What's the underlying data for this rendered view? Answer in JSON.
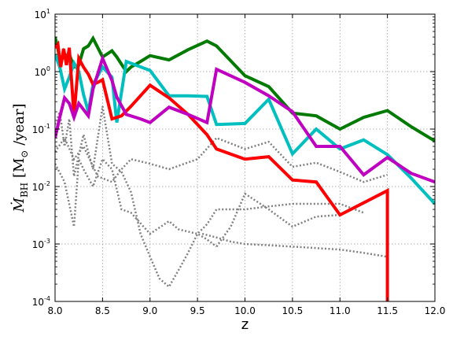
{
  "chart_data": {
    "type": "line",
    "title": "",
    "xlabel": "z",
    "ylabel": "Ṁ_BH  [M⊙ /year]",
    "ylabel_main": "Ṁ",
    "ylabel_sub": "BH",
    "ylabel_units_open": "  [M",
    "ylabel_units_sym": "⊙",
    "ylabel_units_close": " /year]",
    "xlim": [
      8.0,
      12.0
    ],
    "ylim": [
      0.0001,
      10
    ],
    "yscale": "log",
    "grid": true,
    "legend": "none",
    "x_ticks": [
      "8.0",
      "8.5",
      "9.0",
      "9.5",
      "10.0",
      "10.5",
      "11.0",
      "11.5",
      "12.0"
    ],
    "y_ticks": [
      {
        "base": "10",
        "exp": "-4"
      },
      {
        "base": "10",
        "exp": "-3"
      },
      {
        "base": "10",
        "exp": "-2"
      },
      {
        "base": "10",
        "exp": "-1"
      },
      {
        "base": "10",
        "exp": "0"
      },
      {
        "base": "10",
        "exp": "1"
      }
    ],
    "series": [
      {
        "color": "#808080",
        "style": "dotted",
        "x": [
          8.0,
          8.05,
          8.1,
          8.15,
          8.2,
          8.3,
          8.4,
          8.5,
          8.6,
          8.7,
          8.8,
          8.9,
          9.0,
          9.1,
          9.2,
          9.3,
          9.4,
          9.5,
          9.6,
          9.7
        ],
        "y": [
          0.12,
          0.2,
          0.05,
          0.15,
          0.015,
          0.08,
          0.02,
          0.25,
          0.025,
          0.018,
          0.008,
          0.0015,
          0.0006,
          0.00025,
          0.00018,
          0.00035,
          0.0007,
          0.0015,
          0.0012,
          0.0009
        ]
      },
      {
        "color": "#808080",
        "style": "dotted",
        "x": [
          8.0,
          8.1,
          8.2,
          8.25,
          8.3,
          8.4,
          8.5,
          8.6,
          8.7,
          8.8,
          9.0,
          9.2,
          9.3,
          9.5,
          9.6,
          9.7,
          10.0,
          10.25,
          10.5,
          10.75,
          11.0,
          11.25
        ],
        "y": [
          0.025,
          0.012,
          0.002,
          0.03,
          0.02,
          0.01,
          0.03,
          0.02,
          0.004,
          0.0035,
          0.0015,
          0.0025,
          0.0018,
          0.0015,
          0.0022,
          0.004,
          0.004,
          0.0045,
          0.005,
          0.005,
          0.005,
          0.0035
        ]
      },
      {
        "color": "#808080",
        "style": "dotted",
        "x": [
          8.0,
          8.1,
          8.2,
          8.3,
          8.45,
          8.6,
          8.7,
          8.8,
          9.0,
          9.2,
          9.5,
          9.7,
          10.0,
          10.25,
          10.5,
          10.75,
          11.0,
          11.25,
          11.5
        ],
        "y": [
          0.04,
          0.07,
          0.03,
          0.05,
          0.015,
          0.012,
          0.02,
          0.03,
          0.025,
          0.02,
          0.03,
          0.07,
          0.045,
          0.06,
          0.022,
          0.026,
          0.018,
          0.012,
          0.016
        ]
      },
      {
        "color": "#808080",
        "style": "dotted",
        "x": [
          9.55,
          9.7,
          9.85,
          10.0,
          10.25,
          10.5,
          10.75,
          11.0,
          11.25,
          11.5
        ],
        "y": [
          0.0015,
          0.0013,
          0.0011,
          0.001,
          0.00095,
          0.0009,
          0.00085,
          0.0008,
          0.0007,
          0.0006
        ]
      },
      {
        "color": "#808080",
        "style": "dotted",
        "x": [
          9.7,
          9.85,
          10.0,
          10.25,
          10.5,
          10.75,
          11.0
        ],
        "y": [
          0.0009,
          0.002,
          0.0075,
          0.004,
          0.002,
          0.003,
          0.0032
        ]
      },
      {
        "color": "#007a00",
        "style": "solid",
        "x": [
          8.0,
          8.03,
          8.06,
          8.09,
          8.12,
          8.15,
          8.2,
          8.25,
          8.3,
          8.35,
          8.4,
          8.5,
          8.6,
          8.65,
          8.75,
          8.8,
          8.9,
          9.0,
          9.2,
          9.4,
          9.6,
          9.7,
          10.0,
          10.25,
          10.5,
          10.75,
          11.0,
          11.25,
          11.5,
          11.75,
          12.0
        ],
        "y": [
          4.0,
          2.5,
          1.3,
          2.2,
          1.8,
          2.0,
          1.2,
          1.3,
          2.5,
          2.8,
          3.8,
          1.8,
          2.3,
          1.8,
          1.0,
          1.2,
          1.5,
          1.9,
          1.6,
          2.4,
          3.4,
          2.8,
          0.85,
          0.55,
          0.19,
          0.17,
          0.1,
          0.16,
          0.21,
          0.11,
          0.062
        ]
      },
      {
        "color": "#00bfbf",
        "style": "solid",
        "x": [
          8.0,
          8.05,
          8.1,
          8.15,
          8.2,
          8.25,
          8.3,
          8.35,
          8.4,
          8.5,
          8.6,
          8.65,
          8.75,
          9.0,
          9.2,
          9.4,
          9.6,
          9.7,
          10.0,
          10.25,
          10.5,
          10.75,
          11.0,
          11.25,
          11.5,
          11.75,
          12.0
        ],
        "y": [
          2.0,
          1.2,
          0.5,
          0.8,
          1.4,
          1.0,
          0.4,
          0.2,
          0.6,
          1.2,
          0.8,
          0.13,
          1.5,
          1.05,
          0.38,
          0.38,
          0.37,
          0.12,
          0.125,
          0.33,
          0.037,
          0.1,
          0.045,
          0.065,
          0.036,
          0.014,
          0.005
        ]
      },
      {
        "color": "#ff0000",
        "style": "solid",
        "x": [
          8.0,
          8.03,
          8.06,
          8.09,
          8.12,
          8.15,
          8.2,
          8.25,
          8.3,
          8.35,
          8.4,
          8.45,
          8.5,
          8.6,
          8.7,
          8.8,
          9.0,
          9.2,
          9.4,
          9.6,
          9.7,
          10.0,
          10.25,
          10.5,
          10.75,
          11.0,
          11.25,
          11.5,
          11.5
        ],
        "y": [
          2.6,
          3.0,
          1.2,
          2.5,
          1.3,
          2.6,
          0.17,
          1.7,
          1.2,
          0.9,
          0.6,
          0.65,
          0.72,
          0.15,
          0.17,
          0.25,
          0.58,
          0.35,
          0.18,
          0.08,
          0.045,
          0.03,
          0.033,
          0.013,
          0.012,
          0.0032,
          0.0052,
          0.0085,
          0.0001
        ]
      },
      {
        "color": "#c000c0",
        "style": "solid",
        "x": [
          8.0,
          8.05,
          8.1,
          8.15,
          8.2,
          8.25,
          8.35,
          8.4,
          8.5,
          8.6,
          8.65,
          8.75,
          8.9,
          9.0,
          9.2,
          9.4,
          9.6,
          9.7,
          10.0,
          10.25,
          10.5,
          10.75,
          11.0,
          11.25,
          11.5,
          11.75,
          12.0
        ],
        "y": [
          0.07,
          0.16,
          0.35,
          0.28,
          0.16,
          0.28,
          0.17,
          0.5,
          1.7,
          0.7,
          0.36,
          0.18,
          0.15,
          0.13,
          0.24,
          0.18,
          0.13,
          1.1,
          0.65,
          0.38,
          0.2,
          0.05,
          0.05,
          0.016,
          0.032,
          0.017,
          0.012
        ]
      }
    ]
  }
}
